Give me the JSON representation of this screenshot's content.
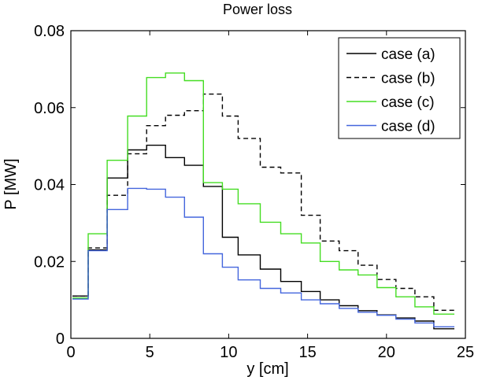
{
  "chart_data": {
    "type": "line",
    "step": true,
    "title": "Power loss",
    "xlabel": "y [cm]",
    "ylabel": "P [MW]",
    "xlim": [
      0,
      25
    ],
    "ylim": [
      0,
      0.08
    ],
    "xticks": [
      0,
      5,
      10,
      15,
      20,
      25
    ],
    "xtick_labels": [
      "0",
      "5",
      "10",
      "15",
      "20",
      "25"
    ],
    "yticks": [
      0,
      0.02,
      0.04,
      0.06,
      0.08
    ],
    "ytick_labels": [
      "0",
      "0.02",
      "0.04",
      "0.06",
      "0.08"
    ],
    "grid": false,
    "legend_position": "top-right",
    "bin_edges": [
      0.1,
      1.1,
      2.3,
      3.6,
      4.8,
      6.0,
      7.2,
      8.4,
      9.6,
      10.6,
      12.0,
      13.3,
      14.6,
      15.8,
      17.0,
      18.2,
      19.4,
      20.6,
      21.8,
      23.0,
      24.3
    ],
    "series": [
      {
        "name": "case (a)",
        "color": "#000000",
        "dash": "solid",
        "values": [
          0.011,
          0.023,
          0.0417,
          0.049,
          0.0502,
          0.047,
          0.045,
          0.0395,
          0.0263,
          0.0217,
          0.018,
          0.0148,
          0.0122,
          0.01,
          0.0085,
          0.0072,
          0.0061,
          0.0053,
          0.0045,
          0.0025
        ]
      },
      {
        "name": "case (b)",
        "color": "#000000",
        "dash": "dashed",
        "values": [
          0.011,
          0.0235,
          0.0372,
          0.048,
          0.0553,
          0.058,
          0.0592,
          0.0635,
          0.0578,
          0.052,
          0.0445,
          0.043,
          0.032,
          0.0253,
          0.0228,
          0.019,
          0.0153,
          0.013,
          0.0108,
          0.0073
        ]
      },
      {
        "name": "case (c)",
        "color": "#44dd22",
        "dash": "solid",
        "values": [
          0.0105,
          0.0272,
          0.0463,
          0.0578,
          0.0678,
          0.069,
          0.067,
          0.0405,
          0.0388,
          0.035,
          0.0302,
          0.0272,
          0.0248,
          0.02,
          0.0178,
          0.0165,
          0.0132,
          0.0108,
          0.0082,
          0.0063
        ]
      },
      {
        "name": "case (d)",
        "color": "#4466dd",
        "dash": "solid",
        "values": [
          0.0102,
          0.0228,
          0.0335,
          0.039,
          0.0388,
          0.0367,
          0.0315,
          0.022,
          0.0185,
          0.0152,
          0.013,
          0.0118,
          0.01,
          0.009,
          0.0078,
          0.0068,
          0.006,
          0.005,
          0.004,
          0.003
        ]
      }
    ]
  }
}
